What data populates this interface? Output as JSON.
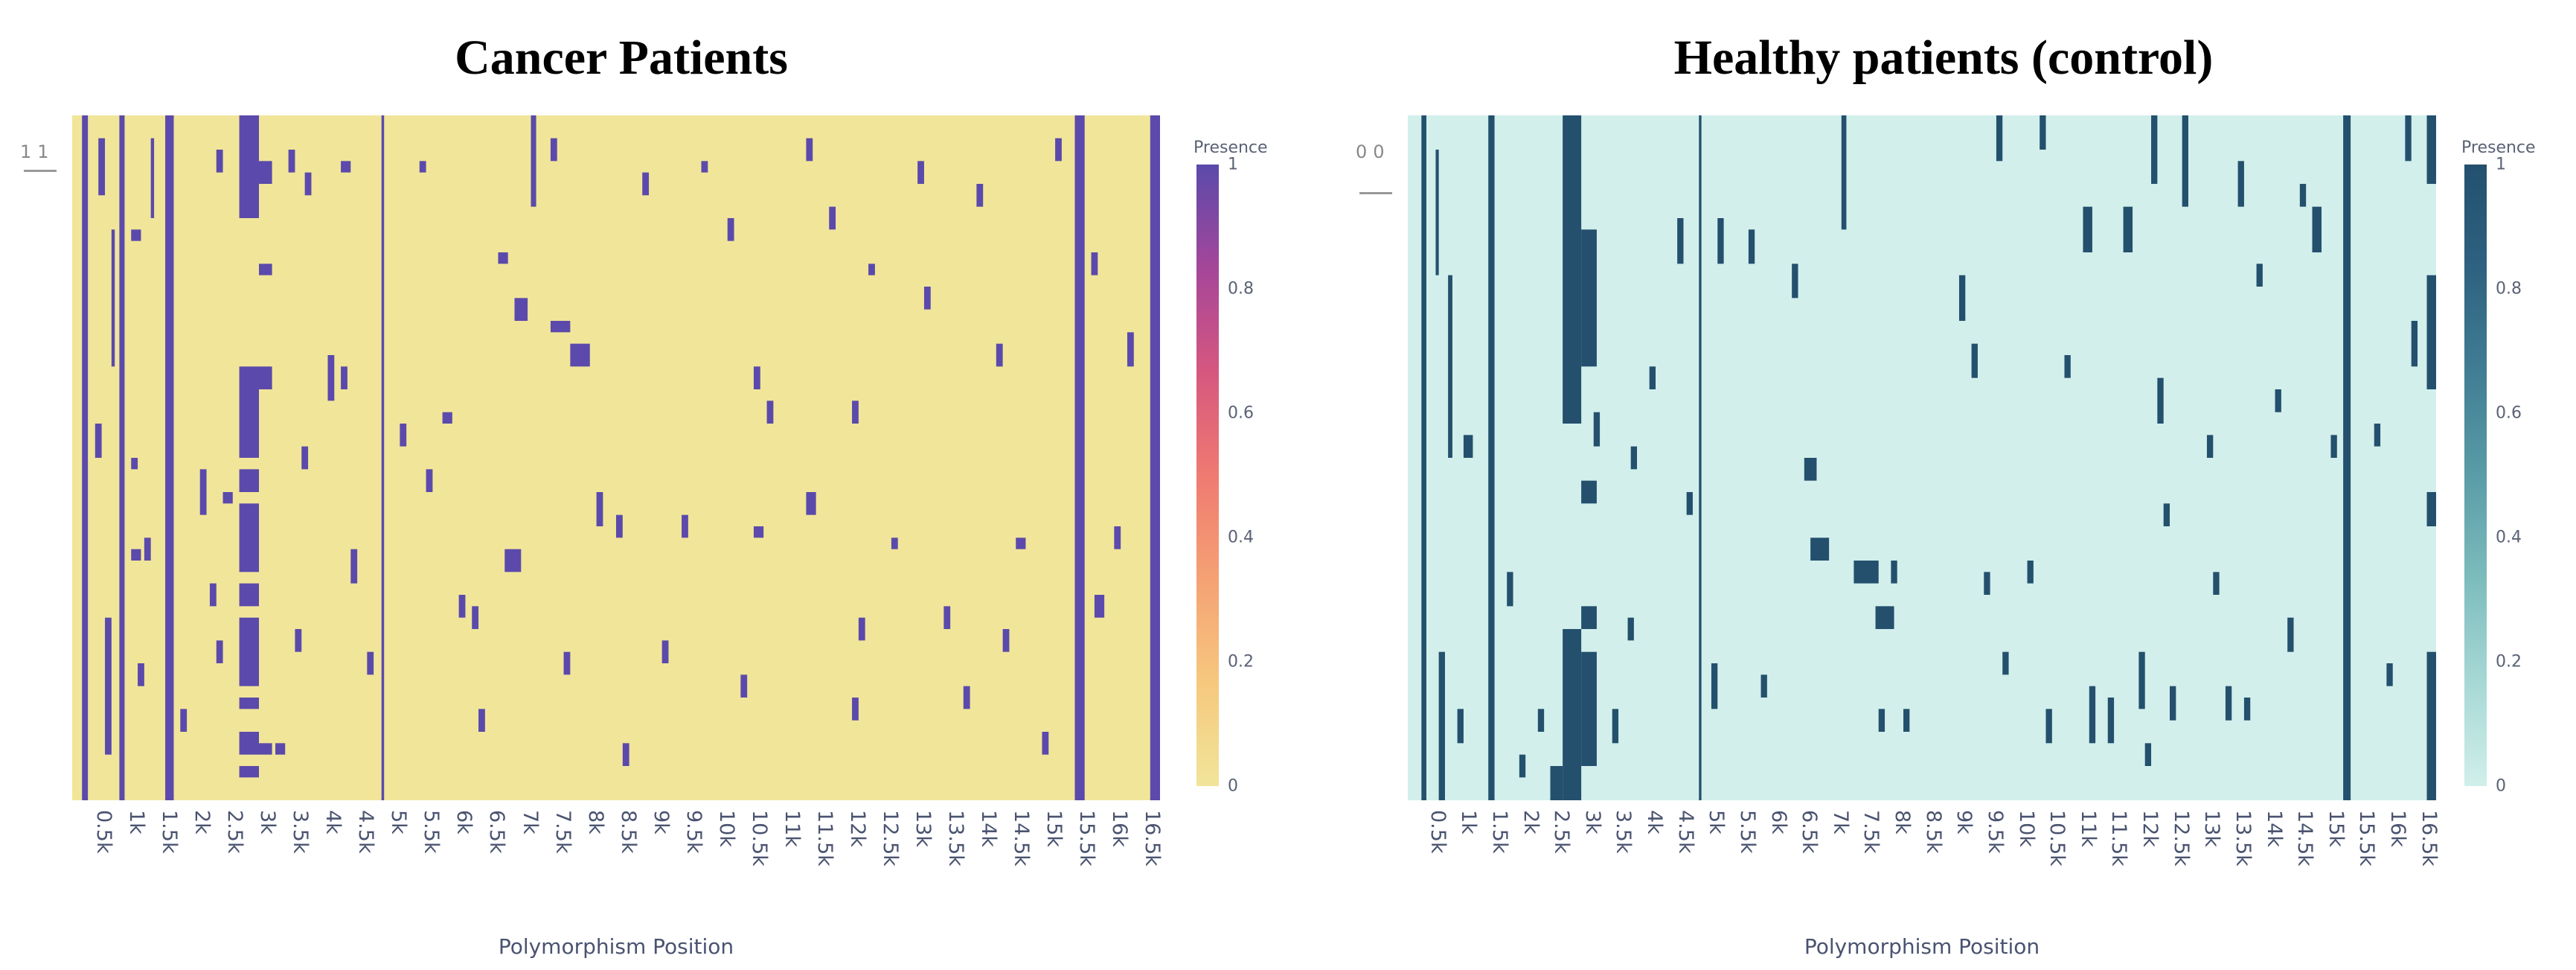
{
  "chart_data": [
    {
      "type": "heatmap",
      "title": "Cancer Patients",
      "xlabel": "Polymorphism Position",
      "ylabel": "",
      "y_tick_labels": [
        "1",
        "1"
      ],
      "xlim_k": [
        0,
        16.6
      ],
      "rows": 60,
      "colorbar": {
        "title": "Presence",
        "ticks": [
          "0",
          "0.2",
          "0.4",
          "0.6",
          "0.8",
          "1"
        ],
        "range": [
          0,
          1
        ],
        "colors": [
          "#f1e59a",
          "#f6c87e",
          "#f5a174",
          "#ef7a71",
          "#d6577f",
          "#a5469a",
          "#5a4aab"
        ]
      },
      "background_color": "#f1e59a",
      "presence_color": "#5b4aab",
      "x_ticks": [
        0.5,
        1,
        1.5,
        2,
        2.5,
        3,
        3.5,
        4,
        4.5,
        5,
        5.5,
        6,
        6.5,
        7,
        7.5,
        8,
        8.5,
        9,
        9.5,
        10,
        10.5,
        11,
        11.5,
        12,
        12.5,
        13,
        13.5,
        14,
        14.5,
        15,
        15.5,
        16,
        16.5
      ],
      "x_tick_labels": [
        "0.5k",
        "1k",
        "1.5k",
        "2k",
        "2.5k",
        "3k",
        "3.5k",
        "4k",
        "4.5k",
        "5k",
        "5.5k",
        "6k",
        "6.5k",
        "7k",
        "7.5k",
        "8k",
        "8.5k",
        "9k",
        "9.5k",
        "10k",
        "10.5k",
        "11k",
        "11.5k",
        "12k",
        "12.5k",
        "13k",
        "13.5k",
        "14k",
        "14.5k",
        "15k",
        "15.5k",
        "16k",
        "16.5k"
      ],
      "presence_cells_note": "each cell = [start_kbp, end_kbp, first_patient_row, end_patient_row], value 1",
      "presence_cells": [
        [
          0.15,
          0.24,
          0,
          60
        ],
        [
          0.72,
          0.8,
          0,
          60
        ],
        [
          1.42,
          1.55,
          0,
          60
        ],
        [
          4.72,
          4.76,
          0,
          60
        ],
        [
          15.3,
          15.45,
          0,
          60
        ],
        [
          16.45,
          16.6,
          0,
          60
        ],
        [
          2.55,
          2.85,
          0,
          9
        ],
        [
          2.85,
          3.05,
          4,
          6
        ],
        [
          2.85,
          3.05,
          13,
          14
        ],
        [
          2.55,
          2.85,
          22,
          30
        ],
        [
          2.85,
          3.05,
          22,
          24
        ],
        [
          2.55,
          2.85,
          31,
          33
        ],
        [
          2.55,
          2.85,
          34,
          40
        ],
        [
          2.55,
          2.85,
          41,
          43
        ],
        [
          2.55,
          2.85,
          44,
          50
        ],
        [
          2.55,
          2.85,
          51,
          52
        ],
        [
          2.55,
          2.85,
          54,
          56
        ],
        [
          2.85,
          3.05,
          55,
          56
        ],
        [
          2.55,
          2.85,
          57,
          58
        ],
        [
          3.1,
          3.25,
          55,
          56
        ],
        [
          0.4,
          0.5,
          2,
          7
        ],
        [
          0.9,
          1.05,
          10,
          11
        ],
        [
          0.35,
          0.45,
          27,
          30
        ],
        [
          0.9,
          1.0,
          30,
          31
        ],
        [
          0.9,
          1.05,
          38,
          39
        ],
        [
          1.95,
          2.05,
          31,
          35
        ],
        [
          2.2,
          2.3,
          3,
          5
        ],
        [
          1.2,
          1.25,
          2,
          9
        ],
        [
          2.3,
          2.45,
          33,
          34
        ],
        [
          1.1,
          1.2,
          37,
          39
        ],
        [
          2.1,
          2.2,
          41,
          43
        ],
        [
          3.3,
          3.4,
          3,
          5
        ],
        [
          3.55,
          3.65,
          5,
          7
        ],
        [
          3.9,
          4.0,
          21,
          25
        ],
        [
          4.1,
          4.2,
          22,
          24
        ],
        [
          4.25,
          4.35,
          38,
          41
        ],
        [
          3.5,
          3.6,
          29,
          31
        ],
        [
          4.1,
          4.25,
          4,
          5
        ],
        [
          5.3,
          5.4,
          4,
          5
        ],
        [
          5.65,
          5.8,
          26,
          27
        ],
        [
          6.5,
          6.65,
          12,
          13
        ],
        [
          6.75,
          6.95,
          16,
          18
        ],
        [
          7.3,
          7.6,
          18,
          19
        ],
        [
          7.6,
          7.9,
          20,
          22
        ],
        [
          6.6,
          6.85,
          38,
          40
        ],
        [
          5.9,
          6.0,
          42,
          44
        ],
        [
          6.1,
          6.2,
          43,
          45
        ],
        [
          8.0,
          8.1,
          33,
          36
        ],
        [
          8.3,
          8.4,
          35,
          37
        ],
        [
          7.0,
          7.08,
          0,
          8
        ],
        [
          7.3,
          7.4,
          2,
          4
        ],
        [
          8.7,
          8.8,
          5,
          7
        ],
        [
          9.6,
          9.7,
          4,
          5
        ],
        [
          10.0,
          10.1,
          9,
          11
        ],
        [
          10.4,
          10.5,
          22,
          24
        ],
        [
          10.6,
          10.7,
          25,
          27
        ],
        [
          10.4,
          10.55,
          36,
          37
        ],
        [
          11.2,
          11.3,
          2,
          4
        ],
        [
          11.55,
          11.65,
          8,
          10
        ],
        [
          11.2,
          11.35,
          33,
          35
        ],
        [
          11.9,
          12.0,
          25,
          27
        ],
        [
          12.15,
          12.25,
          13,
          14
        ],
        [
          12.5,
          12.6,
          37,
          38
        ],
        [
          12.0,
          12.1,
          44,
          46
        ],
        [
          13.0,
          13.1,
          15,
          17
        ],
        [
          12.9,
          13.0,
          4,
          6
        ],
        [
          13.8,
          13.9,
          6,
          8
        ],
        [
          14.1,
          14.2,
          20,
          22
        ],
        [
          14.4,
          14.55,
          37,
          38
        ],
        [
          14.2,
          14.3,
          45,
          47
        ],
        [
          13.3,
          13.4,
          43,
          45
        ],
        [
          15.0,
          15.1,
          2,
          4
        ],
        [
          15.55,
          15.65,
          12,
          14
        ],
        [
          15.6,
          15.75,
          42,
          44
        ],
        [
          15.9,
          16.0,
          36,
          38
        ],
        [
          16.1,
          16.2,
          19,
          22
        ],
        [
          9.3,
          9.4,
          35,
          37
        ],
        [
          9.0,
          9.1,
          46,
          48
        ],
        [
          8.4,
          8.5,
          55,
          57
        ],
        [
          5.0,
          5.1,
          27,
          29
        ],
        [
          5.4,
          5.5,
          31,
          33
        ],
        [
          4.5,
          4.6,
          47,
          49
        ],
        [
          3.4,
          3.5,
          45,
          47
        ],
        [
          1.0,
          1.1,
          48,
          50
        ],
        [
          1.65,
          1.75,
          52,
          54
        ],
        [
          2.2,
          2.3,
          46,
          48
        ],
        [
          7.5,
          7.6,
          47,
          49
        ],
        [
          11.9,
          12.0,
          51,
          53
        ],
        [
          13.6,
          13.7,
          50,
          52
        ],
        [
          14.8,
          14.9,
          54,
          56
        ],
        [
          10.2,
          10.3,
          49,
          51
        ],
        [
          6.2,
          6.3,
          52,
          54
        ],
        [
          0.5,
          0.6,
          44,
          56
        ],
        [
          0.6,
          0.65,
          10,
          22
        ]
      ]
    },
    {
      "type": "heatmap",
      "title": "Healthy patients (control)",
      "xlabel": "Polymorphism Position",
      "ylabel": "",
      "y_tick_labels": [
        "0",
        "0"
      ],
      "xlim_k": [
        0,
        16.6
      ],
      "rows": 60,
      "colorbar": {
        "title": "Presence",
        "ticks": [
          "0",
          "0.2",
          "0.4",
          "0.6",
          "0.8",
          "1"
        ],
        "range": [
          0,
          1
        ],
        "colors": [
          "#d1efeb",
          "#a7d8d5",
          "#7dbcbd",
          "#5a9ca7",
          "#417d94",
          "#2e6280",
          "#23506f"
        ]
      },
      "background_color": "#d2efeb",
      "presence_color": "#24506e",
      "x_ticks": [
        0.5,
        1,
        1.5,
        2,
        2.5,
        3,
        3.5,
        4,
        4.5,
        5,
        5.5,
        6,
        6.5,
        7,
        7.5,
        8,
        8.5,
        9,
        9.5,
        10,
        10.5,
        11,
        11.5,
        12,
        12.5,
        13,
        13.5,
        14,
        14.5,
        15,
        15.5,
        16,
        16.5
      ],
      "x_tick_labels": [
        "0.5k",
        "1k",
        "1.5k",
        "2k",
        "2.5k",
        "3k",
        "3.5k",
        "4k",
        "4.5k",
        "5k",
        "5.5k",
        "6k",
        "6.5k",
        "7k",
        "7.5k",
        "8k",
        "8.5k",
        "9k",
        "9.5k",
        "10k",
        "10.5k",
        "11k",
        "11.5k",
        "12k",
        "12.5k",
        "13k",
        "13.5k",
        "14k",
        "14.5k",
        "15k",
        "15.5k",
        "16k",
        "16.5k"
      ],
      "presence_cells_note": "each cell = [start_kbp, end_kbp, first_patient_row, end_patient_row], value 1",
      "presence_cells": [
        [
          0.22,
          0.3,
          0,
          60
        ],
        [
          1.3,
          1.4,
          0,
          60
        ],
        [
          4.7,
          4.74,
          0,
          60
        ],
        [
          15.1,
          15.22,
          0,
          60
        ],
        [
          16.45,
          16.6,
          0,
          6
        ],
        [
          16.45,
          16.6,
          14,
          24
        ],
        [
          16.45,
          16.6,
          33,
          36
        ],
        [
          16.45,
          16.6,
          47,
          60
        ],
        [
          2.5,
          2.8,
          0,
          27
        ],
        [
          2.8,
          3.05,
          10,
          22
        ],
        [
          2.8,
          3.05,
          32,
          34
        ],
        [
          2.8,
          3.05,
          43,
          45
        ],
        [
          2.5,
          2.8,
          45,
          60
        ],
        [
          2.8,
          3.05,
          47,
          57
        ],
        [
          2.3,
          2.5,
          57,
          60
        ],
        [
          0.45,
          0.5,
          3,
          14
        ],
        [
          0.65,
          0.72,
          14,
          30
        ],
        [
          0.9,
          1.05,
          28,
          30
        ],
        [
          0.8,
          0.9,
          52,
          55
        ],
        [
          1.8,
          1.9,
          56,
          58
        ],
        [
          2.1,
          2.2,
          52,
          54
        ],
        [
          3.3,
          3.4,
          52,
          55
        ],
        [
          3.55,
          3.65,
          44,
          46
        ],
        [
          3.6,
          3.7,
          29,
          31
        ],
        [
          3.9,
          4.0,
          22,
          24
        ],
        [
          4.35,
          4.45,
          9,
          13
        ],
        [
          5.0,
          5.1,
          9,
          13
        ],
        [
          5.5,
          5.6,
          10,
          13
        ],
        [
          4.5,
          4.6,
          33,
          35
        ],
        [
          5.7,
          5.8,
          49,
          51
        ],
        [
          6.4,
          6.6,
          30,
          32
        ],
        [
          6.5,
          6.8,
          37,
          39
        ],
        [
          7.2,
          7.6,
          39,
          41
        ],
        [
          7.8,
          7.9,
          39,
          41
        ],
        [
          7.55,
          7.85,
          43,
          45
        ],
        [
          7.0,
          7.08,
          0,
          10
        ],
        [
          7.6,
          7.7,
          52,
          54
        ],
        [
          8.9,
          9.0,
          14,
          18
        ],
        [
          9.1,
          9.2,
          20,
          23
        ],
        [
          9.5,
          9.6,
          0,
          4
        ],
        [
          9.6,
          9.7,
          47,
          49
        ],
        [
          10.0,
          10.1,
          39,
          41
        ],
        [
          10.3,
          10.4,
          52,
          55
        ],
        [
          10.6,
          10.7,
          21,
          23
        ],
        [
          10.9,
          11.05,
          8,
          12
        ],
        [
          11.0,
          11.1,
          50,
          55
        ],
        [
          11.3,
          11.4,
          51,
          55
        ],
        [
          11.55,
          11.7,
          8,
          12
        ],
        [
          11.8,
          11.9,
          47,
          52
        ],
        [
          12.1,
          12.2,
          23,
          27
        ],
        [
          12.2,
          12.3,
          34,
          36
        ],
        [
          12.3,
          12.4,
          50,
          53
        ],
        [
          12.5,
          12.6,
          0,
          8
        ],
        [
          12.9,
          13.0,
          28,
          30
        ],
        [
          13.2,
          13.3,
          50,
          53
        ],
        [
          13.5,
          13.6,
          51,
          53
        ],
        [
          13.7,
          13.8,
          13,
          15
        ],
        [
          14.0,
          14.1,
          24,
          26
        ],
        [
          14.4,
          14.5,
          6,
          8
        ],
        [
          14.6,
          14.75,
          8,
          12
        ],
        [
          14.9,
          15.0,
          28,
          30
        ],
        [
          15.6,
          15.7,
          27,
          29
        ],
        [
          15.8,
          15.9,
          48,
          50
        ],
        [
          16.1,
          16.2,
          0,
          4
        ],
        [
          16.2,
          16.3,
          18,
          22
        ],
        [
          13.4,
          13.5,
          4,
          8
        ],
        [
          12.0,
          12.1,
          0,
          6
        ],
        [
          10.2,
          10.3,
          0,
          3
        ],
        [
          6.2,
          6.3,
          13,
          16
        ],
        [
          8.0,
          8.1,
          52,
          54
        ],
        [
          9.3,
          9.4,
          40,
          42
        ],
        [
          3.0,
          3.1,
          26,
          29
        ],
        [
          4.9,
          5.0,
          48,
          52
        ],
        [
          1.6,
          1.7,
          40,
          43
        ],
        [
          0.5,
          0.6,
          47,
          60
        ],
        [
          14.2,
          14.3,
          44,
          47
        ],
        [
          13.0,
          13.1,
          40,
          42
        ],
        [
          11.9,
          12.0,
          55,
          57
        ]
      ]
    }
  ]
}
